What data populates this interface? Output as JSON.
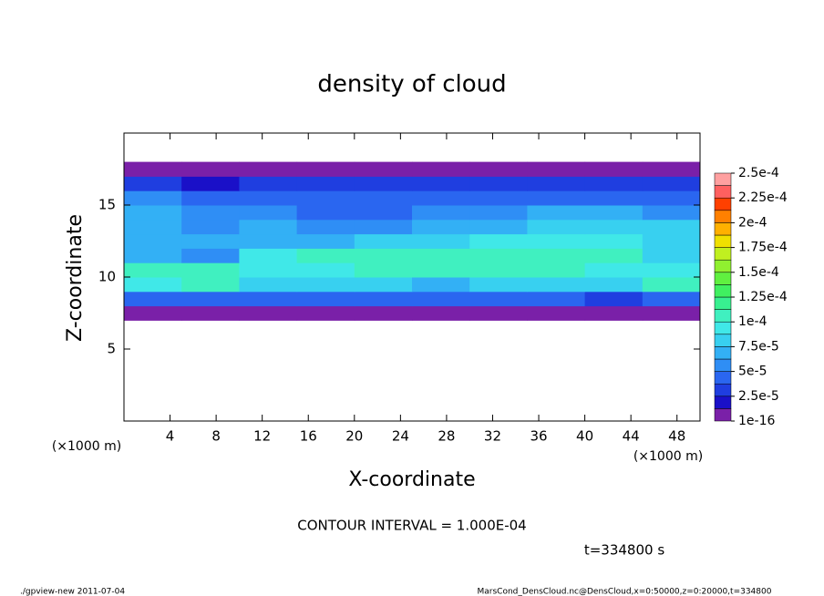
{
  "chart_data": {
    "type": "contour",
    "title": "density of cloud",
    "xlabel": "X-coordinate",
    "ylabel": "Z-coordinate",
    "xunit": "(×1000 m)",
    "xlim": [
      0,
      50
    ],
    "xticks": [
      4,
      8,
      12,
      16,
      20,
      24,
      28,
      32,
      36,
      40,
      44,
      48
    ],
    "ylim": [
      0,
      20
    ],
    "yticks": [
      5,
      10,
      15
    ],
    "x": [
      2.5,
      7.5,
      12.5,
      17.5,
      22.5,
      27.5,
      32.5,
      37.5,
      42.5,
      47.5
    ],
    "z": [
      7.5,
      8.5,
      9.5,
      10.5,
      11.5,
      12.5,
      13.5,
      14.5,
      15.5,
      16.5,
      17.5
    ],
    "values": [
      [
        1e-06,
        1e-06,
        1e-06,
        1e-06,
        1e-06,
        1e-06,
        1e-06,
        1e-06,
        1e-06,
        1e-06
      ],
      [
        5e-05,
        5e-05,
        4e-05,
        4.5e-05,
        4.5e-05,
        4.5e-05,
        4e-05,
        4e-05,
        3e-05,
        4e-05
      ],
      [
        9e-05,
        0.000105,
        8e-05,
        8e-05,
        8e-05,
        7.5e-05,
        8e-05,
        8e-05,
        8e-05,
        0.000105
      ],
      [
        0.000105,
        0.000105,
        9e-05,
        0.0001,
        0.00011,
        0.00011,
        0.000105,
        0.000105,
        9.5e-05,
        9e-05
      ],
      [
        7e-05,
        6e-05,
        9e-05,
        0.000105,
        0.00011,
        0.00011,
        0.00011,
        0.00011,
        0.000105,
        8e-05
      ],
      [
        7.5e-05,
        7e-05,
        7.5e-05,
        7.5e-05,
        8e-05,
        8.5e-05,
        9e-05,
        9e-05,
        9e-05,
        8.5e-05
      ],
      [
        7.5e-05,
        6e-05,
        6.5e-05,
        6e-05,
        6e-05,
        6.5e-05,
        7e-05,
        8e-05,
        8e-05,
        8e-05
      ],
      [
        7e-05,
        6e-05,
        5.5e-05,
        5e-05,
        5e-05,
        5.5e-05,
        6e-05,
        7e-05,
        6.5e-05,
        6e-05
      ],
      [
        6e-05,
        5e-05,
        4.5e-05,
        4e-05,
        4e-05,
        4.5e-05,
        4.5e-05,
        5e-05,
        5e-05,
        5e-05
      ],
      [
        3e-05,
        2.5e-05,
        3e-05,
        3e-05,
        3e-05,
        3e-05,
        3e-05,
        3e-05,
        3e-05,
        3e-05
      ],
      [
        1e-06,
        1e-06,
        1e-06,
        1e-06,
        1e-06,
        1e-06,
        1e-06,
        1e-06,
        1e-06,
        1e-06
      ]
    ],
    "colorbar_ticks": [
      {
        "value": 1e-16,
        "label": "1e-16"
      },
      {
        "value": 2.5e-05,
        "label": "2.5e-5"
      },
      {
        "value": 5e-05,
        "label": "5e-5"
      },
      {
        "value": 7.5e-05,
        "label": "7.5e-5"
      },
      {
        "value": 0.0001,
        "label": "1e-4"
      },
      {
        "value": 0.000125,
        "label": "1.25e-4"
      },
      {
        "value": 0.00015,
        "label": "1.5e-4"
      },
      {
        "value": 0.000175,
        "label": "1.75e-4"
      },
      {
        "value": 0.0002,
        "label": "2e-4"
      },
      {
        "value": 0.000225,
        "label": "2.25e-4"
      },
      {
        "value": 0.00025,
        "label": "2.5e-4"
      }
    ],
    "colors": [
      "#7a20a8",
      "#1a10c8",
      "#1f3ee0",
      "#2a66f0",
      "#2f8ef5",
      "#33b0f5",
      "#38d0f0",
      "#40e8e8",
      "#40f0c0",
      "#38f090",
      "#40f060",
      "#60f040",
      "#90f030",
      "#c0f020",
      "#f0e000",
      "#ffb000",
      "#ff8000",
      "#ff4000",
      "#ff6060",
      "#ffa0a0"
    ],
    "contour_note": "CONTOUR INTERVAL = 1.000E-04",
    "time_note": "t=334800 s",
    "footer_left": "./gpview-new  2011-07-04",
    "footer_right": "MarsCond_DensCloud.nc@DensCloud,x=0:50000,z=0:20000,t=334800"
  }
}
